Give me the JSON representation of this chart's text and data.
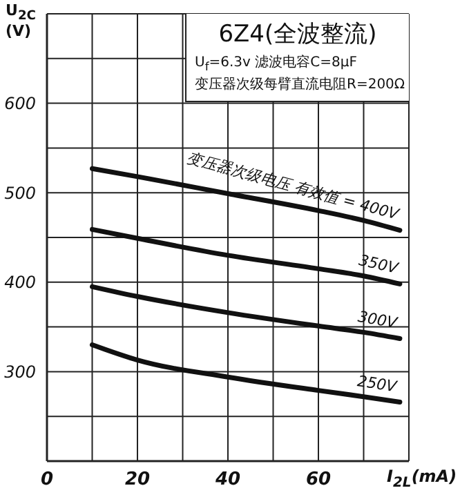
{
  "chart_data": {
    "type": "line",
    "title": "6Z4(全波整流)",
    "subtitle": "U$_{f}$=6.3v  滤波电容C=8μF\n变压器次级每臂直流电阻R=200Ω",
    "xlabel": "I$_{2L}$(mA)",
    "ylabel": "U$_{2C}$\n(V)",
    "x": [
      10,
      20,
      40,
      60,
      70,
      78
    ],
    "series": [
      {
        "name": "变压器次级电压 有效值 = 400V",
        "color": "#111111",
        "values": [
          527,
          518,
          499,
          480,
          469,
          458
        ]
      },
      {
        "name": "350V",
        "color": "#111111",
        "values": [
          459,
          449,
          430,
          415,
          407,
          398
        ]
      },
      {
        "name": "300V",
        "color": "#111111",
        "values": [
          395,
          384,
          366,
          351,
          344,
          337
        ]
      },
      {
        "name": "250V",
        "color": "#111111",
        "values": [
          330,
          313,
          294,
          279,
          272,
          266
        ]
      }
    ],
    "xlim": [
      0,
      80
    ],
    "xticks": [
      0,
      {
        "value": 10,
        "label": null
      },
      20,
      {
        "value": 30,
        "label": null
      },
      40,
      {
        "value": 50,
        "label": null
      },
      60,
      {
        "value": 70,
        "label": null
      },
      {
        "value": 80,
        "label": null
      }
    ],
    "ylim": [
      200,
      700
    ],
    "yticks": [
      {
        "value": 200,
        "label": null
      },
      {
        "value": 250,
        "label": null
      },
      300,
      {
        "value": 350,
        "label": null
      },
      400,
      {
        "value": 450,
        "label": null
      },
      500,
      {
        "value": 550,
        "label": null
      },
      600,
      {
        "value": 650,
        "label": null
      },
      {
        "value": 700,
        "label": null
      }
    ],
    "grid": true,
    "marker": "none",
    "line_style": "solid",
    "legend": false
  }
}
